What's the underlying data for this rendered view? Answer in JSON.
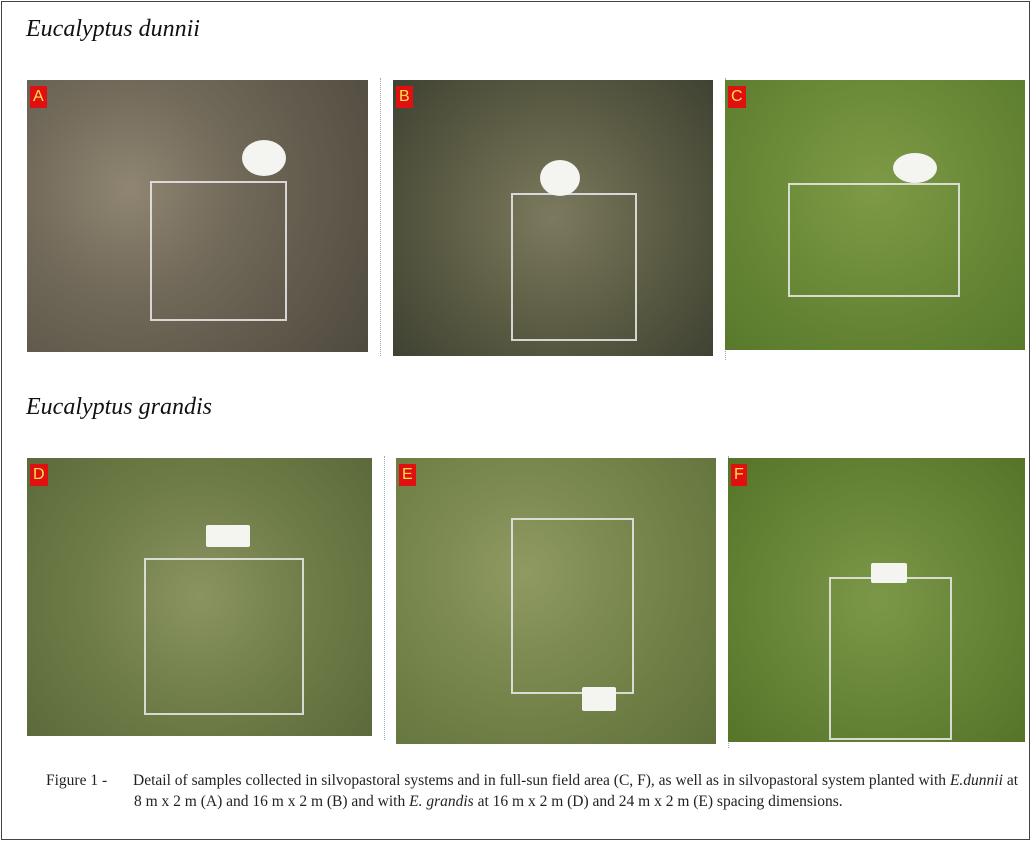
{
  "sections": [
    {
      "title": "Eucalyptus dunnii",
      "panels": [
        "A",
        "B",
        "C"
      ]
    },
    {
      "title": "Eucalyptus grandis",
      "panels": [
        "D",
        "E",
        "F"
      ]
    }
  ],
  "caption": {
    "label": "Figure 1 -",
    "parts": [
      "Detail of samples collected in silvopastoral systems and in full-sun field area (C, F), as well as in silvopastoral system planted with ",
      "E.dunnii",
      " at 8 m x 2 m (A) and 16 m x 2 m (B)  and with ",
      "E. grandis",
      " at 16 m x 2 m (D) and 24 m x 2 m (E) spacing dimensions."
    ]
  }
}
